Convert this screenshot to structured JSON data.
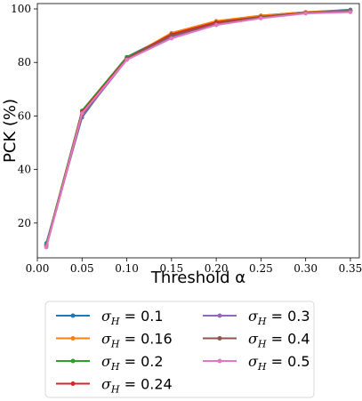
{
  "chart_data": {
    "type": "line",
    "xlabel": "Threshold α",
    "ylabel": "PCK (%)",
    "xlim": [
      0.0,
      0.36
    ],
    "ylim": [
      7,
      102
    ],
    "x_ticks": [
      "0.00",
      "0.05",
      "0.10",
      "0.15",
      "0.20",
      "0.25",
      "0.30",
      "0.35"
    ],
    "x_tick_values": [
      0.0,
      0.05,
      0.1,
      0.15,
      0.2,
      0.25,
      0.3,
      0.35
    ],
    "y_ticks": [
      "20",
      "40",
      "60",
      "80",
      "100"
    ],
    "y_tick_values": [
      20,
      40,
      60,
      80,
      100
    ],
    "x": [
      0.01,
      0.05,
      0.1,
      0.15,
      0.2,
      0.25,
      0.3,
      0.35
    ],
    "grid": false,
    "legend_position": "bottom",
    "legend_columns": 2,
    "series": [
      {
        "name": "σ_H = 0.1",
        "symbol": "σ",
        "sub": "H",
        "rhs": " = 0.1",
        "color": "#1f77b4",
        "values": [
          12.5,
          59.5,
          82.0,
          90.5,
          95.0,
          97.5,
          98.8,
          99.7
        ]
      },
      {
        "name": "σ_H = 0.16",
        "symbol": "σ",
        "sub": "H",
        "rhs": " = 0.16",
        "color": "#ff7f0e",
        "values": [
          12.0,
          61.0,
          81.5,
          91.0,
          95.5,
          97.5,
          98.8,
          99.5
        ]
      },
      {
        "name": "σ_H = 0.2",
        "symbol": "σ",
        "sub": "H",
        "rhs": " = 0.2",
        "color": "#2ca02c",
        "values": [
          12.0,
          62.0,
          82.0,
          90.0,
          95.0,
          97.0,
          98.5,
          99.5
        ]
      },
      {
        "name": "σ_H = 0.24",
        "symbol": "σ",
        "sub": "H",
        "rhs": " = 0.24",
        "color": "#d62728",
        "values": [
          11.5,
          61.5,
          81.5,
          90.5,
          95.0,
          97.0,
          98.5,
          99.3
        ]
      },
      {
        "name": "σ_H = 0.3",
        "symbol": "σ",
        "sub": "H",
        "rhs": " = 0.3",
        "color": "#9467bd",
        "values": [
          11.5,
          60.0,
          81.0,
          89.5,
          94.0,
          96.8,
          98.5,
          99.2
        ]
      },
      {
        "name": "σ_H = 0.4",
        "symbol": "σ",
        "sub": "H",
        "rhs": " = 0.4",
        "color": "#8c564b",
        "values": [
          11.0,
          60.5,
          81.5,
          90.0,
          94.5,
          97.0,
          98.5,
          99.0
        ]
      },
      {
        "name": "σ_H = 0.5",
        "symbol": "σ",
        "sub": "H",
        "rhs": " = 0.5",
        "color": "#e377c2",
        "values": [
          11.0,
          61.0,
          81.0,
          89.0,
          94.0,
          96.5,
          98.3,
          98.8
        ]
      }
    ]
  }
}
